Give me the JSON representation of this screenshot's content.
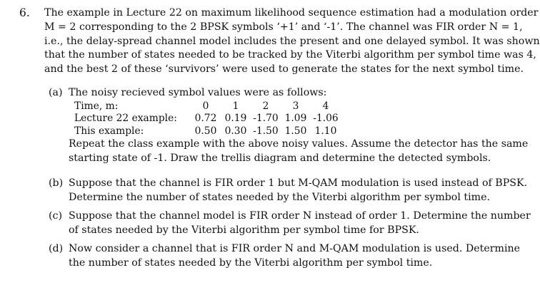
{
  "problem": {
    "number": "6.",
    "intro_lines": [
      "The example in Lecture 22 on maximum likelihood sequence estimation had a modulation order",
      "M = 2 corresponding to the 2 BPSK symbols ‘+1’ and ‘-1’. The channel was FIR order N = 1,",
      "i.e., the delay-spread channel model includes the present and one delayed symbol. It was shown",
      "that the number of states needed to be tracked by the Viterbi algorithm per symbol time was 4,",
      "and the best 2 of these ‘survivors’ were used to generate the states for the next symbol time."
    ]
  },
  "part_a": {
    "label": "(a)",
    "lead": "The noisy recieved symbol values were as follows:",
    "table": {
      "time_label": "Time, m:",
      "time_values": [
        "0",
        "1",
        "2",
        "3",
        "4"
      ],
      "rows": [
        {
          "label": "Lecture 22 example:",
          "values": [
            "0.72",
            "0.19",
            "-1.70",
            "1.09",
            "-1.06"
          ]
        },
        {
          "label": "This example:",
          "values": [
            "0.50",
            "0.30",
            "-1.50",
            "1.50",
            "1.10"
          ]
        }
      ]
    },
    "after_lines": [
      "Repeat the class example with the above noisy values. Assume the detector has the same",
      "starting state of -1. Draw the trellis diagram and determine the detected symbols."
    ]
  },
  "part_b": {
    "label": "(b)",
    "lines": [
      "Suppose that the channel is FIR order 1 but M-QAM modulation is used instead of BPSK.",
      "Determine the number of states needed by the Viterbi algorithm per symbol time."
    ]
  },
  "part_c": {
    "label": "(c)",
    "lines": [
      "Suppose that the channel model is FIR order N instead of order 1. Determine the number",
      "of states needed by the Viterbi algorithm per symbol time for BPSK."
    ]
  },
  "part_d": {
    "label": "(d)",
    "lines": [
      "Now consider a channel that is FIR order N and M-QAM modulation is used. Determine",
      "the number of states needed by the Viterbi algorithm per symbol time."
    ]
  }
}
